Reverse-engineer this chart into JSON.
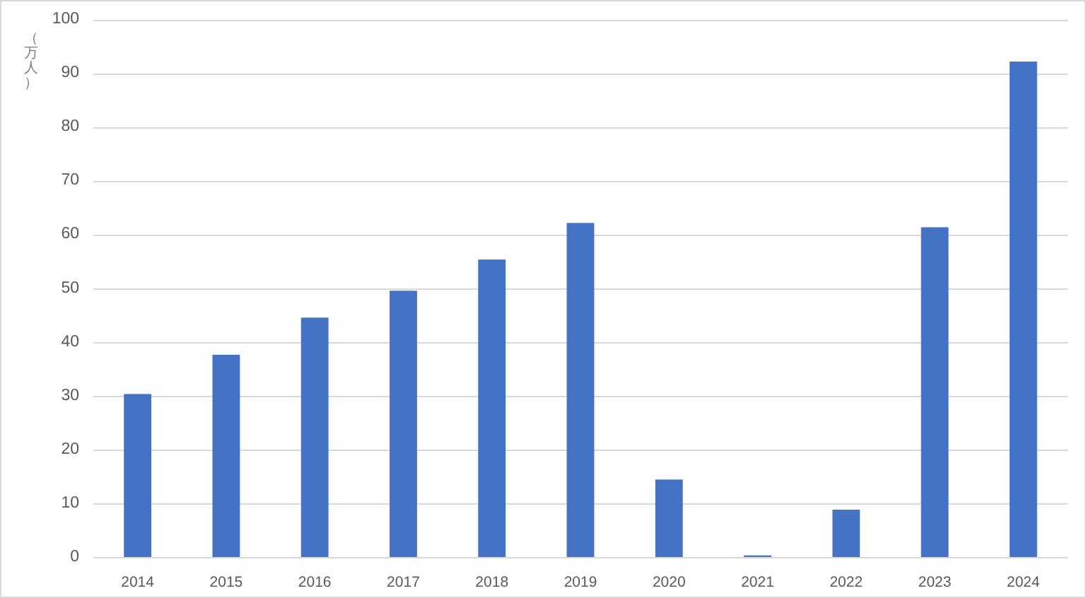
{
  "chart_data": {
    "type": "bar",
    "ylabel": "（万人）",
    "categories": [
      "2014",
      "2015",
      "2016",
      "2017",
      "2018",
      "2019",
      "2020",
      "2021",
      "2022",
      "2023",
      "2024"
    ],
    "values": [
      30.3,
      37.6,
      44.5,
      49.5,
      55.3,
      62.1,
      14.4,
      0.3,
      8.8,
      61.3,
      92.1
    ],
    "color": "#4472c4",
    "ylim": [
      0,
      100
    ],
    "yticks": [
      0,
      10,
      20,
      30,
      40,
      50,
      60,
      70,
      80,
      90,
      100
    ],
    "grid": "y"
  }
}
